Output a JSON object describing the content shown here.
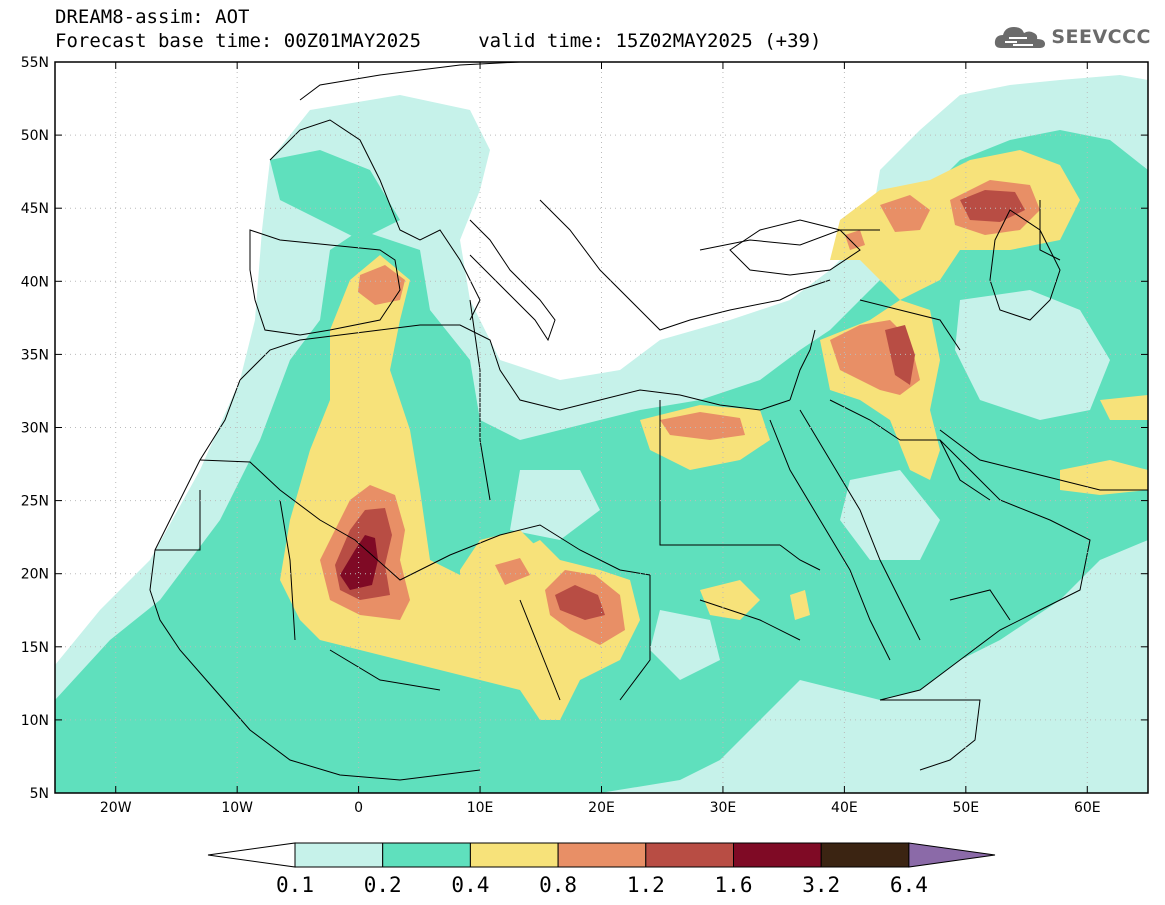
{
  "title": {
    "line1": "DREAM8-assim: AOT",
    "line2": "Forecast base time: 00Z01MAY2025     valid time: 15Z02MAY2025 (+39)"
  },
  "logo": {
    "text": "SEEVCCC",
    "icon": "cloud-icon"
  },
  "map": {
    "projection": "lat-lon",
    "lon_range": [
      -25,
      65
    ],
    "lat_range": [
      5,
      55
    ],
    "grid": true,
    "y_ticks": [
      "55N",
      "50N",
      "45N",
      "40N",
      "35N",
      "30N",
      "25N",
      "20N",
      "15N",
      "10N",
      "5N"
    ],
    "x_ticks": [
      "20W",
      "10W",
      "0",
      "10E",
      "20E",
      "30E",
      "40E",
      "50E",
      "60E"
    ],
    "y_tick_values": [
      55,
      50,
      45,
      40,
      35,
      30,
      25,
      20,
      15,
      10,
      5
    ],
    "x_tick_values": [
      -20,
      -10,
      0,
      10,
      20,
      30,
      40,
      50,
      60
    ]
  },
  "colorbar": {
    "levels": [
      "0.1",
      "0.2",
      "0.4",
      "0.8",
      "1.2",
      "1.6",
      "3.2",
      "6.4"
    ],
    "colors": [
      "#ffffff",
      "#c6f2ea",
      "#5fe0bd",
      "#f7e27a",
      "#e88f66",
      "#b84d44",
      "#7f0a25",
      "#3b2412",
      "#8b6aa8"
    ]
  }
}
